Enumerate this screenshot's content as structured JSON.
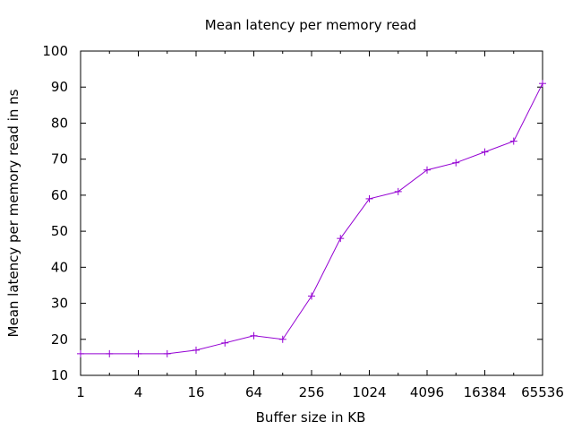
{
  "chart_data": {
    "type": "line",
    "title": "Mean latency per memory read",
    "xlabel": "Buffer size in KB",
    "ylabel": "Mean latency per memory read in ns",
    "x_scale": "log2",
    "xlim": [
      1,
      65536
    ],
    "ylim": [
      10,
      100
    ],
    "x_ticks": [
      "1",
      "4",
      "16",
      "64",
      "256",
      "1024",
      "4096",
      "16384",
      "65536"
    ],
    "y_ticks": [
      "10",
      "20",
      "30",
      "40",
      "50",
      "60",
      "70",
      "80",
      "90",
      "100"
    ],
    "grid": false,
    "legend": "none",
    "color": "#9400d3",
    "series": [
      {
        "x": [
          1,
          2,
          4,
          8,
          16,
          32,
          64,
          128,
          256,
          512,
          1024,
          2048,
          4096,
          8192,
          16384,
          32768,
          65536
        ],
        "values": [
          16,
          16,
          16,
          16,
          17,
          19,
          21,
          20,
          32,
          48,
          59,
          61,
          67,
          69,
          72,
          75,
          91
        ]
      }
    ]
  }
}
